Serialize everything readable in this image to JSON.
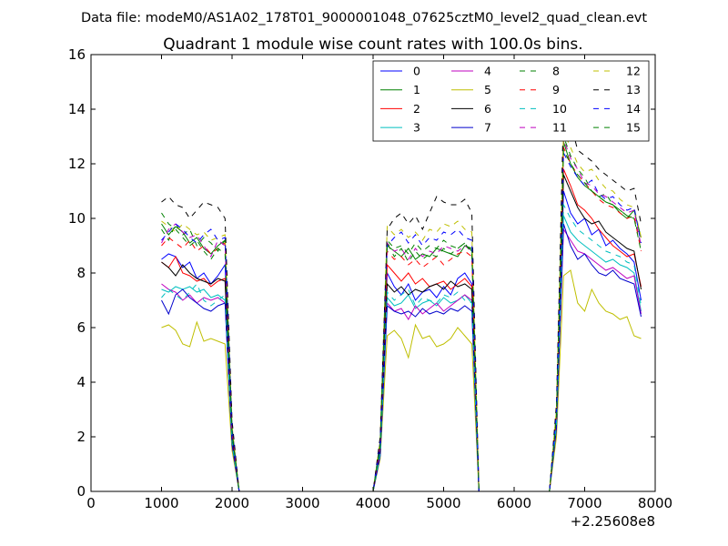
{
  "chart_data": {
    "type": "line",
    "suptitle": "Data file: modeM0/AS1A02_178T01_9000001048_07625cztM0_level2_quad_clean.evt",
    "title": "Quadrant 1 module wise count rates with 100.0s bins.",
    "xlabel": "",
    "ylabel": "",
    "xlim": [
      0,
      8000
    ],
    "ylim": [
      0,
      16
    ],
    "x_offset_label": "+2.25608e8",
    "xticks": [
      0,
      1000,
      2000,
      3000,
      4000,
      5000,
      6000,
      7000,
      8000
    ],
    "xtick_labels": [
      "0",
      "1000",
      "2000",
      "3000",
      "4000",
      "5000",
      "6000",
      "7000",
      "8000"
    ],
    "yticks": [
      0,
      2,
      4,
      6,
      8,
      10,
      12,
      14,
      16
    ],
    "ytick_labels": [
      "0",
      "2",
      "4",
      "6",
      "8",
      "10",
      "12",
      "14",
      "16"
    ],
    "grid": false,
    "legend_position": "top-right",
    "legend_columns": 4,
    "x": [
      1000,
      1100,
      1200,
      1300,
      1400,
      1500,
      1600,
      1700,
      1800,
      1900,
      2000,
      2100,
      2200,
      2300,
      2400,
      2500,
      2600,
      2700,
      2800,
      2900,
      3000,
      3100,
      3200,
      3300,
      3400,
      3500,
      3600,
      3700,
      3800,
      3900,
      4000,
      4100,
      4200,
      4300,
      4400,
      4500,
      4600,
      4700,
      4800,
      4900,
      5000,
      5100,
      5200,
      5300,
      5400,
      5500,
      5600,
      5700,
      5800,
      5900,
      6000,
      6100,
      6200,
      6300,
      6400,
      6500,
      6600,
      6700,
      6800,
      6900,
      7000,
      7100,
      7200,
      7300,
      7400,
      7500,
      7600,
      7700,
      7800
    ],
    "series": [
      {
        "name": "0",
        "color": "#0000ff",
        "dashed": false,
        "values": [
          8.5,
          8.7,
          8.6,
          8.2,
          8.4,
          7.8,
          8.0,
          7.6,
          7.9,
          8.3,
          2.0,
          0,
          0,
          0,
          0,
          0,
          0,
          0,
          0,
          0,
          0,
          0,
          0,
          0,
          0,
          0,
          0,
          0,
          0,
          0,
          0,
          1.5,
          8.0,
          7.5,
          7.2,
          7.6,
          7.0,
          7.3,
          7.4,
          7.1,
          7.5,
          7.2,
          7.8,
          8.0,
          7.6,
          0,
          0,
          0,
          0,
          0,
          0,
          0,
          0,
          0,
          0,
          0,
          2.5,
          11.0,
          10.2,
          9.8,
          10.0,
          9.4,
          9.6,
          9.0,
          9.2,
          8.9,
          8.7,
          8.4,
          7.0
        ]
      },
      {
        "name": "1",
        "color": "#008000",
        "dashed": false,
        "values": [
          9.8,
          9.4,
          9.7,
          9.5,
          9.1,
          9.3,
          8.9,
          8.7,
          9.0,
          9.2,
          2.2,
          0,
          0,
          0,
          0,
          0,
          0,
          0,
          0,
          0,
          0,
          0,
          0,
          0,
          0,
          0,
          0,
          0,
          0,
          0,
          0,
          1.8,
          9.0,
          8.8,
          8.6,
          8.9,
          8.5,
          8.7,
          8.6,
          8.9,
          8.8,
          8.7,
          8.6,
          9.0,
          8.9,
          0,
          0,
          0,
          0,
          0,
          0,
          0,
          0,
          0,
          0,
          0,
          2.8,
          12.8,
          12.0,
          11.5,
          11.2,
          11.0,
          10.8,
          10.6,
          10.5,
          10.2,
          10.0,
          10.3,
          9.3
        ]
      },
      {
        "name": "2",
        "color": "#ff0000",
        "dashed": false,
        "values": [
          8.4,
          8.2,
          8.6,
          8.0,
          7.9,
          7.7,
          7.8,
          7.5,
          7.7,
          7.8,
          2.0,
          0,
          0,
          0,
          0,
          0,
          0,
          0,
          0,
          0,
          0,
          0,
          0,
          0,
          0,
          0,
          0,
          0,
          0,
          0,
          0,
          1.6,
          8.3,
          8.0,
          7.7,
          8.0,
          7.6,
          7.8,
          7.5,
          7.6,
          7.7,
          7.4,
          7.6,
          7.8,
          7.5,
          0,
          0,
          0,
          0,
          0,
          0,
          0,
          0,
          0,
          0,
          0,
          2.6,
          11.8,
          11.2,
          10.5,
          10.3,
          10.0,
          9.6,
          9.3,
          9.0,
          8.8,
          8.6,
          8.7,
          7.5
        ]
      },
      {
        "name": "3",
        "color": "#00bfbf",
        "dashed": false,
        "values": [
          7.4,
          7.3,
          7.5,
          7.4,
          7.5,
          7.3,
          7.4,
          7.1,
          7.2,
          7.0,
          1.8,
          0,
          0,
          0,
          0,
          0,
          0,
          0,
          0,
          0,
          0,
          0,
          0,
          0,
          0,
          0,
          0,
          0,
          0,
          0,
          0,
          1.4,
          7.1,
          6.8,
          6.9,
          7.2,
          6.7,
          6.9,
          7.0,
          6.8,
          7.1,
          6.9,
          7.0,
          7.2,
          6.9,
          0,
          0,
          0,
          0,
          0,
          0,
          0,
          0,
          0,
          0,
          0,
          2.4,
          10.1,
          9.5,
          9.2,
          9.0,
          8.8,
          8.6,
          8.4,
          8.5,
          8.3,
          8.2,
          8.0,
          6.6
        ]
      },
      {
        "name": "4",
        "color": "#bf00bf",
        "dashed": false,
        "values": [
          7.6,
          7.4,
          7.3,
          7.0,
          7.2,
          6.9,
          7.1,
          7.0,
          7.1,
          6.9,
          1.8,
          0,
          0,
          0,
          0,
          0,
          0,
          0,
          0,
          0,
          0,
          0,
          0,
          0,
          0,
          0,
          0,
          0,
          0,
          0,
          0,
          1.4,
          6.9,
          6.6,
          6.7,
          6.3,
          6.8,
          6.5,
          6.7,
          6.9,
          6.6,
          6.8,
          7.0,
          7.2,
          7.0,
          0,
          0,
          0,
          0,
          0,
          0,
          0,
          0,
          0,
          0,
          0,
          2.3,
          9.6,
          9.2,
          8.8,
          8.7,
          8.5,
          8.3,
          8.1,
          8.2,
          8.0,
          7.8,
          7.9,
          6.5
        ]
      },
      {
        "name": "5",
        "color": "#bfbf00",
        "dashed": false,
        "values": [
          6.0,
          6.1,
          5.9,
          5.4,
          5.3,
          6.2,
          5.5,
          5.6,
          5.5,
          5.4,
          1.5,
          0,
          0,
          0,
          0,
          0,
          0,
          0,
          0,
          0,
          0,
          0,
          0,
          0,
          0,
          0,
          0,
          0,
          0,
          0,
          0,
          1.2,
          5.7,
          5.9,
          5.6,
          4.9,
          6.1,
          5.6,
          5.7,
          5.3,
          5.4,
          5.6,
          6.0,
          5.7,
          5.4,
          0,
          0,
          0,
          0,
          0,
          0,
          0,
          0,
          0,
          0,
          0,
          2.0,
          7.9,
          8.1,
          6.9,
          6.6,
          7.4,
          6.9,
          6.6,
          6.5,
          6.3,
          6.4,
          5.7,
          5.6
        ]
      },
      {
        "name": "6",
        "color": "#000000",
        "dashed": false,
        "values": [
          8.4,
          8.2,
          7.9,
          8.3,
          8.0,
          7.8,
          7.7,
          7.6,
          7.8,
          7.7,
          2.0,
          0,
          0,
          0,
          0,
          0,
          0,
          0,
          0,
          0,
          0,
          0,
          0,
          0,
          0,
          0,
          0,
          0,
          0,
          0,
          0,
          1.6,
          7.6,
          7.3,
          7.5,
          7.2,
          7.4,
          7.3,
          7.5,
          7.6,
          7.4,
          7.7,
          7.5,
          7.6,
          7.4,
          0,
          0,
          0,
          0,
          0,
          0,
          0,
          0,
          0,
          0,
          0,
          2.7,
          11.6,
          11.0,
          10.4,
          10.0,
          9.8,
          9.9,
          9.5,
          9.3,
          9.1,
          8.9,
          8.8,
          7.4
        ]
      },
      {
        "name": "7",
        "color": "#0000cc",
        "dashed": false,
        "values": [
          7.0,
          6.5,
          7.2,
          7.4,
          7.1,
          6.9,
          6.7,
          6.6,
          6.8,
          6.9,
          1.7,
          0,
          0,
          0,
          0,
          0,
          0,
          0,
          0,
          0,
          0,
          0,
          0,
          0,
          0,
          0,
          0,
          0,
          0,
          0,
          0,
          1.3,
          6.8,
          6.6,
          6.5,
          6.6,
          6.4,
          6.7,
          6.5,
          6.6,
          6.5,
          6.7,
          6.6,
          6.8,
          6.6,
          0,
          0,
          0,
          0,
          0,
          0,
          0,
          0,
          0,
          0,
          0,
          2.3,
          9.8,
          9.0,
          8.5,
          8.7,
          8.3,
          8.0,
          7.9,
          8.1,
          7.8,
          7.7,
          7.6,
          6.4
        ]
      },
      {
        "name": "8",
        "color": "#008000",
        "dashed": true,
        "values": [
          9.6,
          9.2,
          9.8,
          9.4,
          9.6,
          9.0,
          9.3,
          9.1,
          8.8,
          9.2,
          2.2,
          0,
          0,
          0,
          0,
          0,
          0,
          0,
          0,
          0,
          0,
          0,
          0,
          0,
          0,
          0,
          0,
          0,
          0,
          0,
          0,
          1.8,
          9.2,
          8.9,
          9.0,
          8.7,
          9.1,
          8.8,
          9.0,
          8.9,
          9.2,
          9.0,
          8.9,
          9.1,
          8.8,
          0,
          0,
          0,
          0,
          0,
          0,
          0,
          0,
          0,
          0,
          0,
          2.9,
          13.0,
          12.3,
          11.8,
          11.5,
          11.0,
          10.8,
          10.9,
          10.5,
          10.3,
          10.1,
          10.0,
          9.0
        ]
      },
      {
        "name": "9",
        "color": "#ff0000",
        "dashed": true,
        "values": [
          9.0,
          9.3,
          9.1,
          8.9,
          9.2,
          8.8,
          9.0,
          8.7,
          8.9,
          9.1,
          2.2,
          0,
          0,
          0,
          0,
          0,
          0,
          0,
          0,
          0,
          0,
          0,
          0,
          0,
          0,
          0,
          0,
          0,
          0,
          0,
          0,
          1.7,
          8.8,
          8.5,
          8.6,
          8.3,
          8.5,
          8.2,
          8.4,
          8.6,
          8.3,
          8.5,
          8.7,
          8.8,
          8.6,
          0,
          0,
          0,
          0,
          0,
          0,
          0,
          0,
          0,
          0,
          0,
          2.8,
          12.6,
          12.0,
          11.6,
          11.3,
          11.0,
          10.7,
          10.5,
          10.4,
          10.2,
          10.0,
          10.1,
          8.8
        ]
      },
      {
        "name": "10",
        "color": "#00bfbf",
        "dashed": true,
        "values": [
          7.1,
          7.4,
          7.2,
          7.0,
          7.3,
          7.6,
          7.0,
          6.8,
          7.0,
          7.2,
          1.8,
          0,
          0,
          0,
          0,
          0,
          0,
          0,
          0,
          0,
          0,
          0,
          0,
          0,
          0,
          0,
          0,
          0,
          0,
          0,
          0,
          1.4,
          7.3,
          7.0,
          7.2,
          7.4,
          6.8,
          7.1,
          7.0,
          6.9,
          7.2,
          7.1,
          7.3,
          7.0,
          6.9,
          0,
          0,
          0,
          0,
          0,
          0,
          0,
          0,
          0,
          0,
          0,
          2.5,
          10.5,
          10.0,
          9.6,
          9.4,
          9.2,
          9.0,
          8.8,
          8.7,
          8.6,
          8.4,
          8.3,
          6.8
        ]
      },
      {
        "name": "11",
        "color": "#bf00bf",
        "dashed": true,
        "values": [
          9.1,
          9.6,
          9.8,
          9.5,
          9.3,
          9.4,
          9.0,
          8.6,
          9.2,
          9.0,
          2.3,
          0,
          0,
          0,
          0,
          0,
          0,
          0,
          0,
          0,
          0,
          0,
          0,
          0,
          0,
          0,
          0,
          0,
          0,
          0,
          0,
          1.8,
          9.1,
          8.8,
          8.9,
          8.5,
          8.9,
          8.6,
          8.8,
          8.7,
          9.0,
          8.9,
          8.8,
          9.0,
          8.8,
          0,
          0,
          0,
          0,
          0,
          0,
          0,
          0,
          0,
          0,
          0,
          2.9,
          12.9,
          12.2,
          11.8,
          11.3,
          11.2,
          10.9,
          10.8,
          10.6,
          10.4,
          10.2,
          10.3,
          9.0
        ]
      },
      {
        "name": "12",
        "color": "#bfbf00",
        "dashed": true,
        "values": [
          9.9,
          9.7,
          9.5,
          9.8,
          9.6,
          9.4,
          9.5,
          9.2,
          9.3,
          9.4,
          2.4,
          0,
          0,
          0,
          0,
          0,
          0,
          0,
          0,
          0,
          0,
          0,
          0,
          0,
          0,
          0,
          0,
          0,
          0,
          0,
          0,
          1.9,
          9.7,
          9.4,
          9.6,
          9.3,
          9.5,
          9.2,
          9.6,
          9.5,
          9.8,
          9.7,
          9.9,
          9.6,
          9.5,
          0,
          0,
          0,
          0,
          0,
          0,
          0,
          0,
          0,
          0,
          0,
          3.0,
          13.2,
          12.6,
          12.0,
          11.7,
          11.8,
          11.4,
          11.1,
          11.0,
          10.7,
          10.5,
          10.4,
          9.3
        ]
      },
      {
        "name": "13",
        "color": "#000000",
        "dashed": true,
        "values": [
          10.6,
          10.8,
          10.5,
          10.4,
          10.0,
          10.3,
          10.6,
          10.5,
          10.4,
          10.0,
          2.6,
          0,
          0,
          0,
          0,
          0,
          0,
          0,
          0,
          0,
          0,
          0,
          0,
          0,
          0,
          0,
          0,
          0,
          0,
          0,
          0,
          2.0,
          9.6,
          10.0,
          10.2,
          9.8,
          10.1,
          9.6,
          10.2,
          10.8,
          10.6,
          10.5,
          10.5,
          10.7,
          10.2,
          0,
          0,
          0,
          0,
          0,
          0,
          0,
          0,
          0,
          0,
          0,
          3.2,
          14.0,
          13.5,
          12.5,
          12.3,
          12.1,
          11.8,
          11.6,
          11.4,
          11.2,
          11.0,
          11.1,
          9.8
        ]
      },
      {
        "name": "14",
        "color": "#0000ff",
        "dashed": true,
        "values": [
          9.2,
          9.5,
          9.8,
          9.6,
          9.3,
          9.1,
          9.4,
          9.6,
          9.2,
          9.3,
          2.3,
          0,
          0,
          0,
          0,
          0,
          0,
          0,
          0,
          0,
          0,
          0,
          0,
          0,
          0,
          0,
          0,
          0,
          0,
          0,
          0,
          1.8,
          9.0,
          9.3,
          9.5,
          9.1,
          9.4,
          9.0,
          9.3,
          9.2,
          9.5,
          9.4,
          9.6,
          9.3,
          9.2,
          0,
          0,
          0,
          0,
          0,
          0,
          0,
          0,
          0,
          0,
          0,
          2.9,
          12.4,
          11.9,
          11.5,
          11.2,
          11.4,
          10.9,
          10.7,
          10.8,
          10.5,
          10.3,
          10.4,
          9.1
        ]
      },
      {
        "name": "15",
        "color": "#008000",
        "dashed": true,
        "values": [
          10.2,
          9.8,
          9.6,
          9.3,
          9.0,
          9.2,
          8.8,
          8.5,
          8.9,
          8.7,
          2.2,
          0,
          0,
          0,
          0,
          0,
          0,
          0,
          0,
          0,
          0,
          0,
          0,
          0,
          0,
          0,
          0,
          0,
          0,
          0,
          0,
          1.7,
          9.1,
          8.6,
          8.9,
          8.4,
          8.8,
          8.5,
          8.7,
          8.6,
          8.9,
          8.7,
          8.9,
          9.1,
          8.7,
          0,
          0,
          0,
          0,
          0,
          0,
          0,
          0,
          0,
          0,
          0,
          2.8,
          12.5,
          12.0,
          11.6,
          11.3,
          11.0,
          10.8,
          10.6,
          10.5,
          10.3,
          10.1,
          10.0,
          8.8
        ]
      }
    ]
  }
}
